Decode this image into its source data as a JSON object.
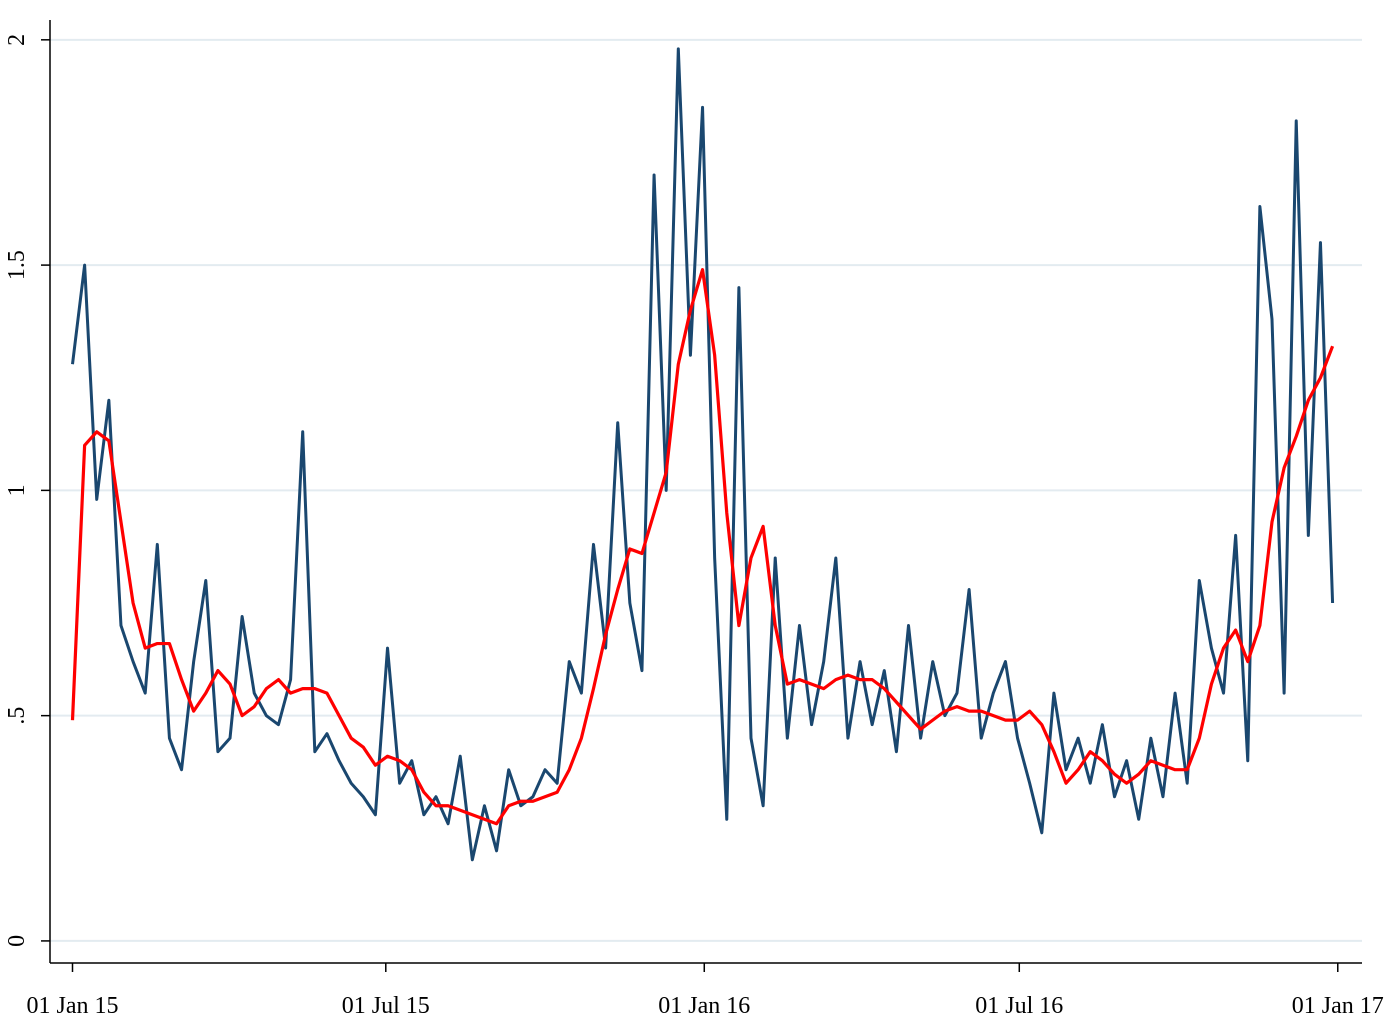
{
  "chart_data": {
    "type": "line",
    "x": [
      "2015-01-01",
      "2015-01-08",
      "2015-01-15",
      "2015-01-22",
      "2015-01-29",
      "2015-02-05",
      "2015-02-12",
      "2015-02-19",
      "2015-02-26",
      "2015-03-05",
      "2015-03-12",
      "2015-03-19",
      "2015-03-26",
      "2015-04-02",
      "2015-04-09",
      "2015-04-16",
      "2015-04-23",
      "2015-04-30",
      "2015-05-07",
      "2015-05-14",
      "2015-05-21",
      "2015-05-28",
      "2015-06-04",
      "2015-06-11",
      "2015-06-18",
      "2015-06-25",
      "2015-07-02",
      "2015-07-09",
      "2015-07-16",
      "2015-07-23",
      "2015-07-30",
      "2015-08-06",
      "2015-08-13",
      "2015-08-20",
      "2015-08-27",
      "2015-09-03",
      "2015-09-10",
      "2015-09-17",
      "2015-09-24",
      "2015-10-01",
      "2015-10-08",
      "2015-10-15",
      "2015-10-22",
      "2015-10-29",
      "2015-11-05",
      "2015-11-12",
      "2015-11-19",
      "2015-11-26",
      "2015-12-03",
      "2015-12-10",
      "2015-12-17",
      "2015-12-24",
      "2015-12-31",
      "2016-01-07",
      "2016-01-14",
      "2016-01-21",
      "2016-01-28",
      "2016-02-04",
      "2016-02-11",
      "2016-02-18",
      "2016-02-25",
      "2016-03-03",
      "2016-03-10",
      "2016-03-17",
      "2016-03-24",
      "2016-03-31",
      "2016-04-07",
      "2016-04-14",
      "2016-04-21",
      "2016-04-28",
      "2016-05-05",
      "2016-05-12",
      "2016-05-19",
      "2016-05-26",
      "2016-06-02",
      "2016-06-09",
      "2016-06-16",
      "2016-06-23",
      "2016-06-30",
      "2016-07-07",
      "2016-07-14",
      "2016-07-21",
      "2016-07-28",
      "2016-08-04",
      "2016-08-11",
      "2016-08-18",
      "2016-08-25",
      "2016-09-01",
      "2016-09-08",
      "2016-09-15",
      "2016-09-22",
      "2016-09-29",
      "2016-10-06",
      "2016-10-13",
      "2016-10-20",
      "2016-10-27",
      "2016-11-03",
      "2016-11-10",
      "2016-11-17",
      "2016-11-24",
      "2016-12-01",
      "2016-12-08",
      "2016-12-15",
      "2016-12-22",
      "2016-12-29"
    ],
    "series": [
      {
        "color": "#1a476f",
        "values": [
          1.28,
          1.5,
          0.98,
          1.2,
          0.7,
          0.62,
          0.55,
          0.88,
          0.45,
          0.38,
          0.62,
          0.8,
          0.42,
          0.45,
          0.72,
          0.55,
          0.5,
          0.48,
          0.58,
          1.13,
          0.42,
          0.46,
          0.4,
          0.35,
          0.32,
          0.28,
          0.65,
          0.35,
          0.4,
          0.28,
          0.32,
          0.26,
          0.41,
          0.18,
          0.3,
          0.2,
          0.38,
          0.3,
          0.32,
          0.38,
          0.35,
          0.62,
          0.55,
          0.88,
          0.65,
          1.15,
          0.75,
          0.6,
          1.7,
          1.0,
          1.98,
          1.3,
          1.85,
          0.85,
          0.27,
          1.45,
          0.45,
          0.3,
          0.85,
          0.45,
          0.7,
          0.48,
          0.62,
          0.85,
          0.45,
          0.62,
          0.48,
          0.6,
          0.42,
          0.7,
          0.45,
          0.62,
          0.5,
          0.55,
          0.78,
          0.45,
          0.55,
          0.62,
          0.45,
          0.35,
          0.24,
          0.55,
          0.38,
          0.45,
          0.35,
          0.48,
          0.32,
          0.4,
          0.27,
          0.45,
          0.32,
          0.55,
          0.35,
          0.8,
          0.65,
          0.55,
          0.9,
          0.4,
          1.63,
          1.38,
          0.55,
          1.82,
          0.9,
          1.55,
          0.75
        ]
      },
      {
        "color": "#ff0000",
        "values": [
          0.49,
          1.1,
          1.13,
          1.11,
          0.93,
          0.75,
          0.65,
          0.66,
          0.66,
          0.58,
          0.51,
          0.55,
          0.6,
          0.57,
          0.5,
          0.52,
          0.56,
          0.58,
          0.55,
          0.56,
          0.56,
          0.55,
          0.5,
          0.45,
          0.43,
          0.39,
          0.41,
          0.4,
          0.38,
          0.33,
          0.3,
          0.3,
          0.29,
          0.28,
          0.27,
          0.26,
          0.3,
          0.31,
          0.31,
          0.32,
          0.33,
          0.38,
          0.45,
          0.56,
          0.68,
          0.78,
          0.87,
          0.86,
          0.95,
          1.04,
          1.28,
          1.4,
          1.49,
          1.3,
          0.95,
          0.7,
          0.85,
          0.92,
          0.7,
          0.57,
          0.58,
          0.57,
          0.56,
          0.58,
          0.59,
          0.58,
          0.58,
          0.56,
          0.53,
          0.5,
          0.47,
          0.49,
          0.51,
          0.52,
          0.51,
          0.51,
          0.5,
          0.49,
          0.49,
          0.51,
          0.48,
          0.42,
          0.35,
          0.38,
          0.42,
          0.4,
          0.37,
          0.35,
          0.37,
          0.4,
          0.39,
          0.38,
          0.38,
          0.45,
          0.57,
          0.65,
          0.69,
          0.62,
          0.7,
          0.93,
          1.05,
          1.12,
          1.2,
          1.25,
          1.32
        ]
      }
    ],
    "xlim": [
      "2014-12-19",
      "2017-01-15"
    ],
    "xticks": [
      {
        "value": "2015-01-01",
        "label": "01 Jan 15"
      },
      {
        "value": "2015-07-01",
        "label": "01 Jul 15"
      },
      {
        "value": "2016-01-01",
        "label": "01 Jan 16"
      },
      {
        "value": "2016-07-01",
        "label": "01 Jul 16"
      },
      {
        "value": "2017-01-01",
        "label": "01 Jan 17"
      }
    ],
    "ylim": [
      -0.049,
      2.044
    ],
    "yticks": [
      0,
      {
        "value": 0.5,
        "label": ".5"
      },
      1,
      1.5,
      2
    ],
    "grid": true
  }
}
